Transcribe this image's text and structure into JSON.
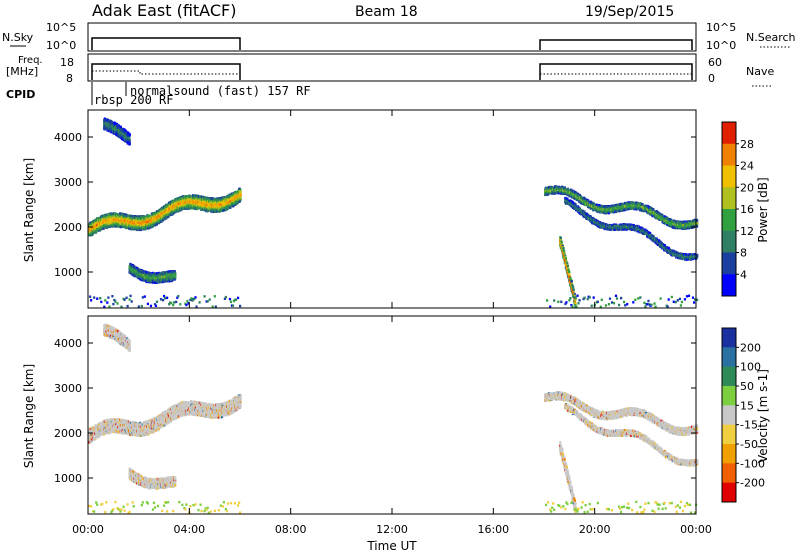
{
  "header": {
    "title": "Adak East (fitACF)",
    "beam": "Beam 18",
    "date": "19/Sep/2015"
  },
  "top_panels": {
    "nsky_label": "N.Sky",
    "nsearch_label": "N.Search",
    "nsky_ticks": [
      "10^5",
      "10^0"
    ],
    "nsearch_ticks": [
      "10^5",
      "10^0"
    ],
    "freq_label": "Freq.",
    "freq_unit": "[MHz]",
    "freq_ticks": [
      "18",
      "8"
    ],
    "nave_label": "Nave",
    "nave_ticks": [
      "60",
      "0"
    ],
    "cpid_label": "CPID",
    "cpid_entries": [
      "rbsp 200 RF",
      "normalsound (fast) 157 RF"
    ]
  },
  "chart_data": [
    {
      "type": "heatmap",
      "name": "power",
      "ylabel": "Slant Range [km]",
      "y_ticks": [
        1000,
        2000,
        3000,
        4000
      ],
      "ylim": [
        200,
        4600
      ],
      "x_ticks": [
        "00:00",
        "04:00",
        "08:00",
        "12:00",
        "16:00",
        "20:00",
        "00:00"
      ],
      "xlim_hours": [
        0,
        24
      ],
      "colorbar": {
        "label": "Power [dB]",
        "ticks": [
          4,
          8,
          12,
          16,
          20,
          24,
          28
        ],
        "colors": [
          "#0000ff",
          "#1b3fa0",
          "#2e7f63",
          "#30a040",
          "#b0c020",
          "#f0c000",
          "#f08000",
          "#e02000"
        ]
      },
      "data_coverage_hours": [
        [
          0,
          6
        ],
        [
          18,
          24
        ]
      ],
      "echo_bands": [
        {
          "t0": 0.0,
          "t1": 6.0,
          "range_start_km": 1950,
          "range_end_km": 2750,
          "width_km": 300,
          "peak_db": 26
        },
        {
          "t0": 1.6,
          "t1": 3.4,
          "range_start_km": 1150,
          "range_end_km": 850,
          "width_km": 220,
          "peak_db": 14
        },
        {
          "t0": 0.6,
          "t1": 1.6,
          "range_start_km": 4200,
          "range_end_km": 4000,
          "width_km": 250,
          "peak_db": 10
        },
        {
          "t0": 18.0,
          "t1": 24.0,
          "range_start_km": 2800,
          "range_end_km": 2100,
          "width_km": 160,
          "peak_db": 16
        },
        {
          "t0": 18.8,
          "t1": 24.0,
          "range_start_km": 2500,
          "range_end_km": 1350,
          "width_km": 120,
          "peak_db": 10
        },
        {
          "t0": 18.6,
          "t1": 19.2,
          "range_start_km": 1600,
          "range_end_km": 300,
          "width_km": 220,
          "peak_db": 30
        }
      ]
    },
    {
      "type": "heatmap",
      "name": "velocity",
      "ylabel": "Slant Range [km]",
      "xlabel": "Time UT",
      "y_ticks": [
        1000,
        2000,
        3000,
        4000
      ],
      "ylim": [
        200,
        4600
      ],
      "x_ticks": [
        "00:00",
        "04:00",
        "08:00",
        "12:00",
        "16:00",
        "20:00",
        "00:00"
      ],
      "xlim_hours": [
        0,
        24
      ],
      "colorbar": {
        "label": "Velocity [m s-1]",
        "ticks": [
          200,
          100,
          50,
          15,
          -15,
          -50,
          -100,
          -200
        ],
        "colors": [
          "#1a2fa0",
          "#2a70a0",
          "#2e8b57",
          "#7cd040",
          "#c8c8c8",
          "#f0d040",
          "#f0a000",
          "#f06000",
          "#e00000"
        ]
      },
      "dominant_value": "ground-scatter grey"
    }
  ]
}
